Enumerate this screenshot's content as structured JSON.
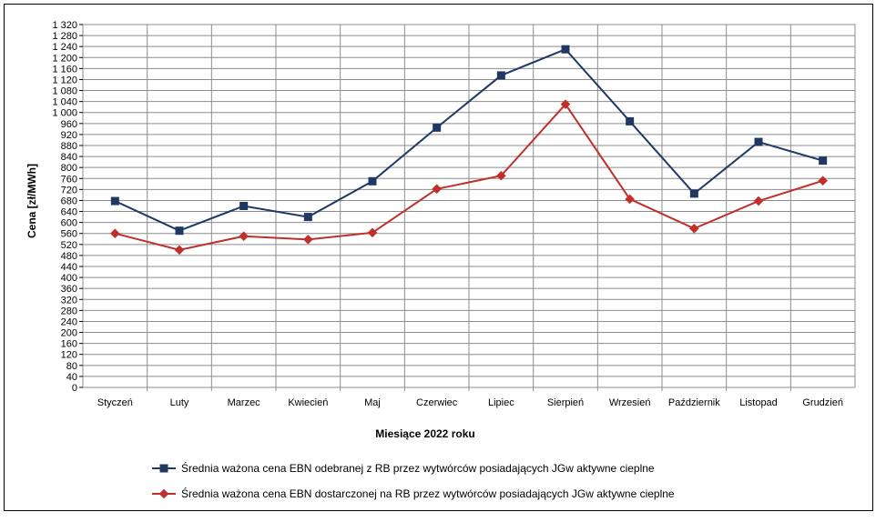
{
  "chart_data": {
    "type": "line",
    "title": "",
    "xlabel": "Miesiące 2022  roku",
    "ylabel": "Cena [zł/MWh]",
    "ylim": [
      0,
      1320
    ],
    "ytick_step": 40,
    "grid": true,
    "legend_position": "bottom",
    "categories": [
      "Styczeń",
      "Luty",
      "Marzec",
      "Kwiecień",
      "Maj",
      "Czerwiec",
      "Lipiec",
      "Sierpień",
      "Wrzesień",
      "Październik",
      "Listopad",
      "Grudzień"
    ],
    "series": [
      {
        "name": "Średnia ważona cena EBN odebranej z RB przez wytwórców posiadających JGw aktywne cieplne",
        "color": "#1f3864",
        "marker": "square",
        "values": [
          678,
          570,
          660,
          620,
          750,
          945,
          1135,
          1230,
          968,
          705,
          893,
          825
        ]
      },
      {
        "name": "Średnia ważona cena EBN dostarczonej na RB przez wytwórców posiadających JGw aktywne cieplne",
        "color": "#c0302a",
        "marker": "diamond",
        "values": [
          560,
          500,
          550,
          538,
          563,
          722,
          770,
          1030,
          685,
          578,
          678,
          752
        ]
      }
    ]
  }
}
